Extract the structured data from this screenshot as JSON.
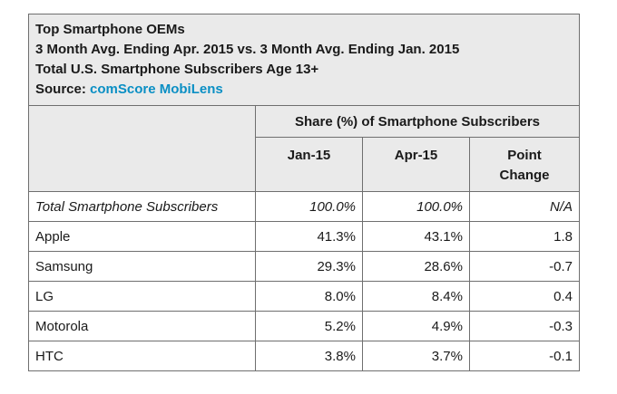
{
  "header": {
    "line1": "Top Smartphone OEMs",
    "line2": "3 Month Avg. Ending Apr. 2015 vs. 3 Month Avg. Ending Jan. 2015",
    "line3": "Total U.S. Smartphone Subscribers Age 13+",
    "source_label": "Source: ",
    "source_name": "comScore MobiLens"
  },
  "table": {
    "group_header": "Share (%) of Smartphone Subscribers",
    "columns": [
      "Jan-15",
      "Apr-15",
      "Point",
      "Change"
    ],
    "rows": [
      {
        "label": "Total Smartphone Subscribers",
        "jan": "100.0%",
        "apr": "100.0%",
        "change": "N/A"
      },
      {
        "label": "Apple",
        "jan": "41.3%",
        "apr": "43.1%",
        "change": "1.8"
      },
      {
        "label": "Samsung",
        "jan": "29.3%",
        "apr": "28.6%",
        "change": "-0.7"
      },
      {
        "label": "LG",
        "jan": "8.0%",
        "apr": "8.4%",
        "change": "0.4"
      },
      {
        "label": "Motorola",
        "jan": "5.2%",
        "apr": "4.9%",
        "change": "-0.3"
      },
      {
        "label": "HTC",
        "jan": "3.8%",
        "apr": "3.7%",
        "change": "-0.1"
      }
    ]
  },
  "colors": {
    "source_link": "#0a8fc4",
    "border": "#6f6f6f",
    "shade": "#eaeaea"
  }
}
